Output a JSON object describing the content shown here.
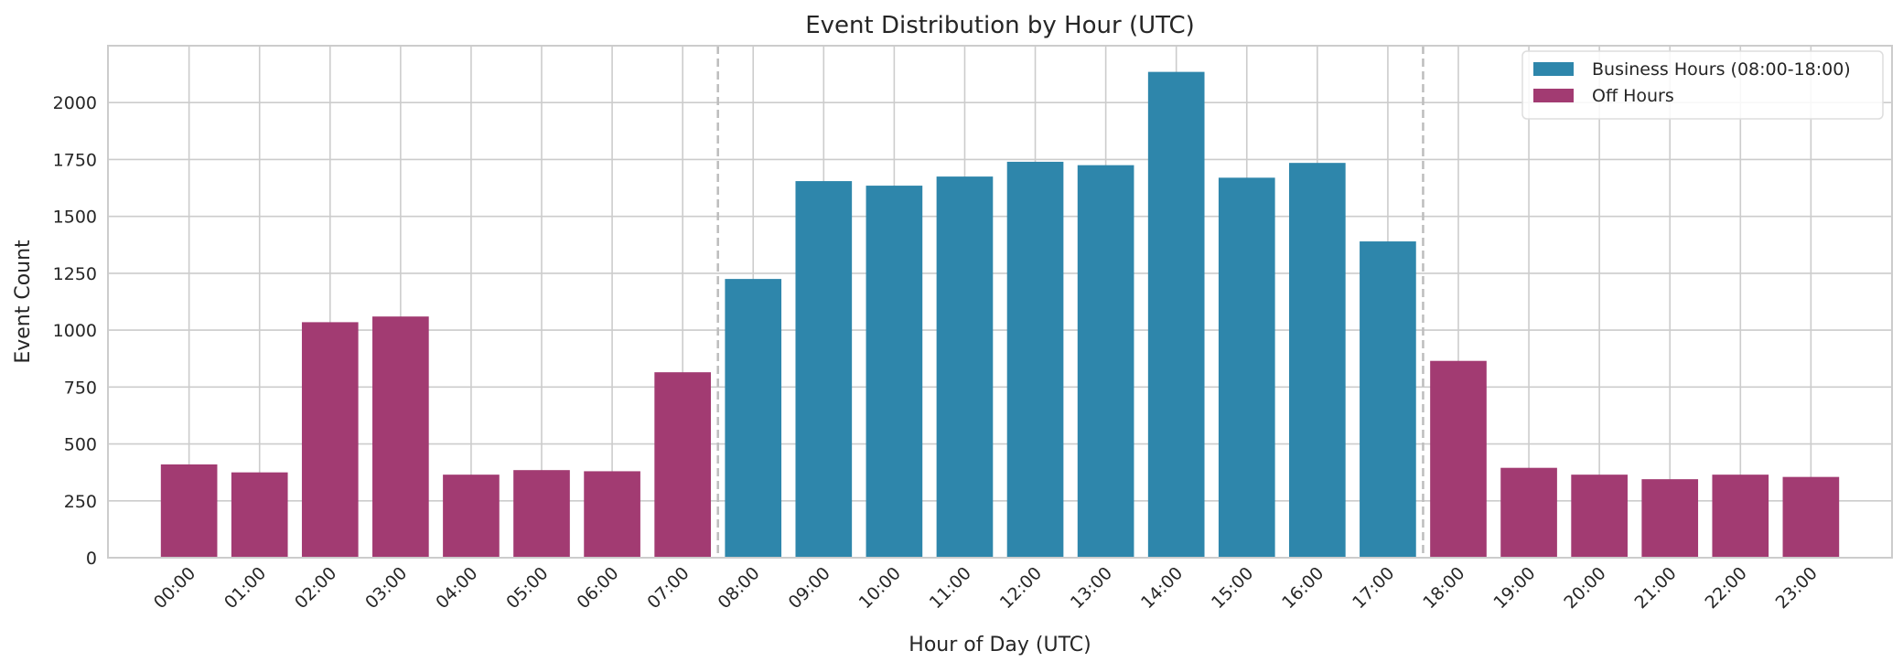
{
  "chart_data": {
    "type": "bar",
    "title": "Event Distribution by Hour (UTC)",
    "xlabel": "Hour of Day (UTC)",
    "ylabel": "Event Count",
    "categories": [
      "00:00",
      "01:00",
      "02:00",
      "03:00",
      "04:00",
      "05:00",
      "06:00",
      "07:00",
      "08:00",
      "09:00",
      "10:00",
      "11:00",
      "12:00",
      "13:00",
      "14:00",
      "15:00",
      "16:00",
      "17:00",
      "18:00",
      "19:00",
      "20:00",
      "21:00",
      "22:00",
      "23:00"
    ],
    "values": [
      410,
      375,
      1035,
      1060,
      365,
      385,
      380,
      815,
      1225,
      1655,
      1635,
      1675,
      1740,
      1725,
      2135,
      1670,
      1735,
      1390,
      865,
      395,
      365,
      345,
      365,
      355
    ],
    "groups": [
      "off",
      "off",
      "off",
      "off",
      "off",
      "off",
      "off",
      "off",
      "business",
      "business",
      "business",
      "business",
      "business",
      "business",
      "business",
      "business",
      "business",
      "business",
      "off",
      "off",
      "off",
      "off",
      "off",
      "off"
    ],
    "ylim": [
      0,
      2250
    ],
    "yticks": [
      0,
      250,
      500,
      750,
      1000,
      1250,
      1500,
      1750,
      2000
    ],
    "grid": true,
    "legend_position": "top-right",
    "legend": [
      {
        "key": "business",
        "label": "Business Hours (08:00-18:00)",
        "color": "#2e86ab"
      },
      {
        "key": "off",
        "label": "Off Hours",
        "color": "#a23b72"
      }
    ],
    "boundary_lines": [
      7.5,
      17.5
    ],
    "boundary_color": "#bdbdbd"
  }
}
